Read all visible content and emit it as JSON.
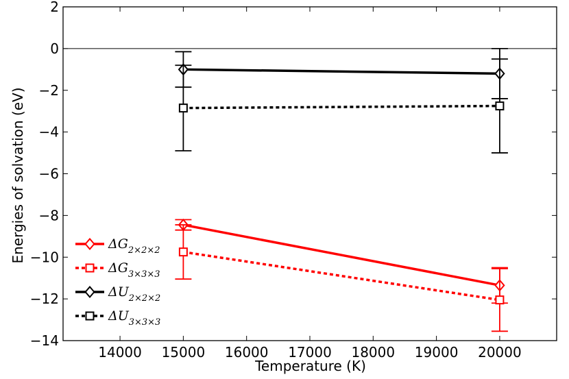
{
  "chart_data": {
    "type": "line",
    "xlabel": "Temperature (K)",
    "ylabel": "Energies of solvation (eV)",
    "xlim": [
      13100,
      20900
    ],
    "ylim": [
      -14,
      2
    ],
    "xticks": [
      14000,
      15000,
      16000,
      17000,
      18000,
      19000,
      20000
    ],
    "yticks": [
      2,
      0,
      -2,
      -4,
      -6,
      -8,
      -10,
      -12,
      -14
    ],
    "ytick_labels": [
      "2",
      "0",
      "−2",
      "−4",
      "−6",
      "−8",
      "−10",
      "−12",
      "−14"
    ],
    "reference_line_y": 0,
    "grid": false,
    "legend_position": "lower-left",
    "series": [
      {
        "name": "ΔG2×2×2",
        "legend_main": "ΔG",
        "legend_sub": "2×2×2",
        "color": "#ff0000",
        "line": "solid",
        "marker": "diamond",
        "x": [
          15000,
          20000
        ],
        "y": [
          -8.45,
          -11.35
        ],
        "yerr": [
          0.25,
          0.85
        ]
      },
      {
        "name": "ΔG3×3×3",
        "legend_main": "ΔG",
        "legend_sub": "3×3×3",
        "color": "#ff0000",
        "line": "dotted",
        "marker": "square",
        "x": [
          15000,
          20000
        ],
        "y": [
          -9.75,
          -12.05
        ],
        "yerr": [
          1.3,
          1.5
        ]
      },
      {
        "name": "ΔU2×2×2",
        "legend_main": "ΔU",
        "legend_sub": "2×2×2",
        "color": "#000000",
        "line": "solid",
        "marker": "diamond",
        "x": [
          15000,
          20000
        ],
        "y": [
          -1.0,
          -1.2
        ],
        "yerr": [
          0.85,
          1.2
        ]
      },
      {
        "name": "ΔU3×3×3",
        "legend_main": "ΔU",
        "legend_sub": "3×3×3",
        "color": "#000000",
        "line": "dotted",
        "marker": "square",
        "x": [
          15000,
          20000
        ],
        "y": [
          -2.85,
          -2.75
        ],
        "yerr": [
          2.05,
          2.25
        ]
      }
    ]
  }
}
